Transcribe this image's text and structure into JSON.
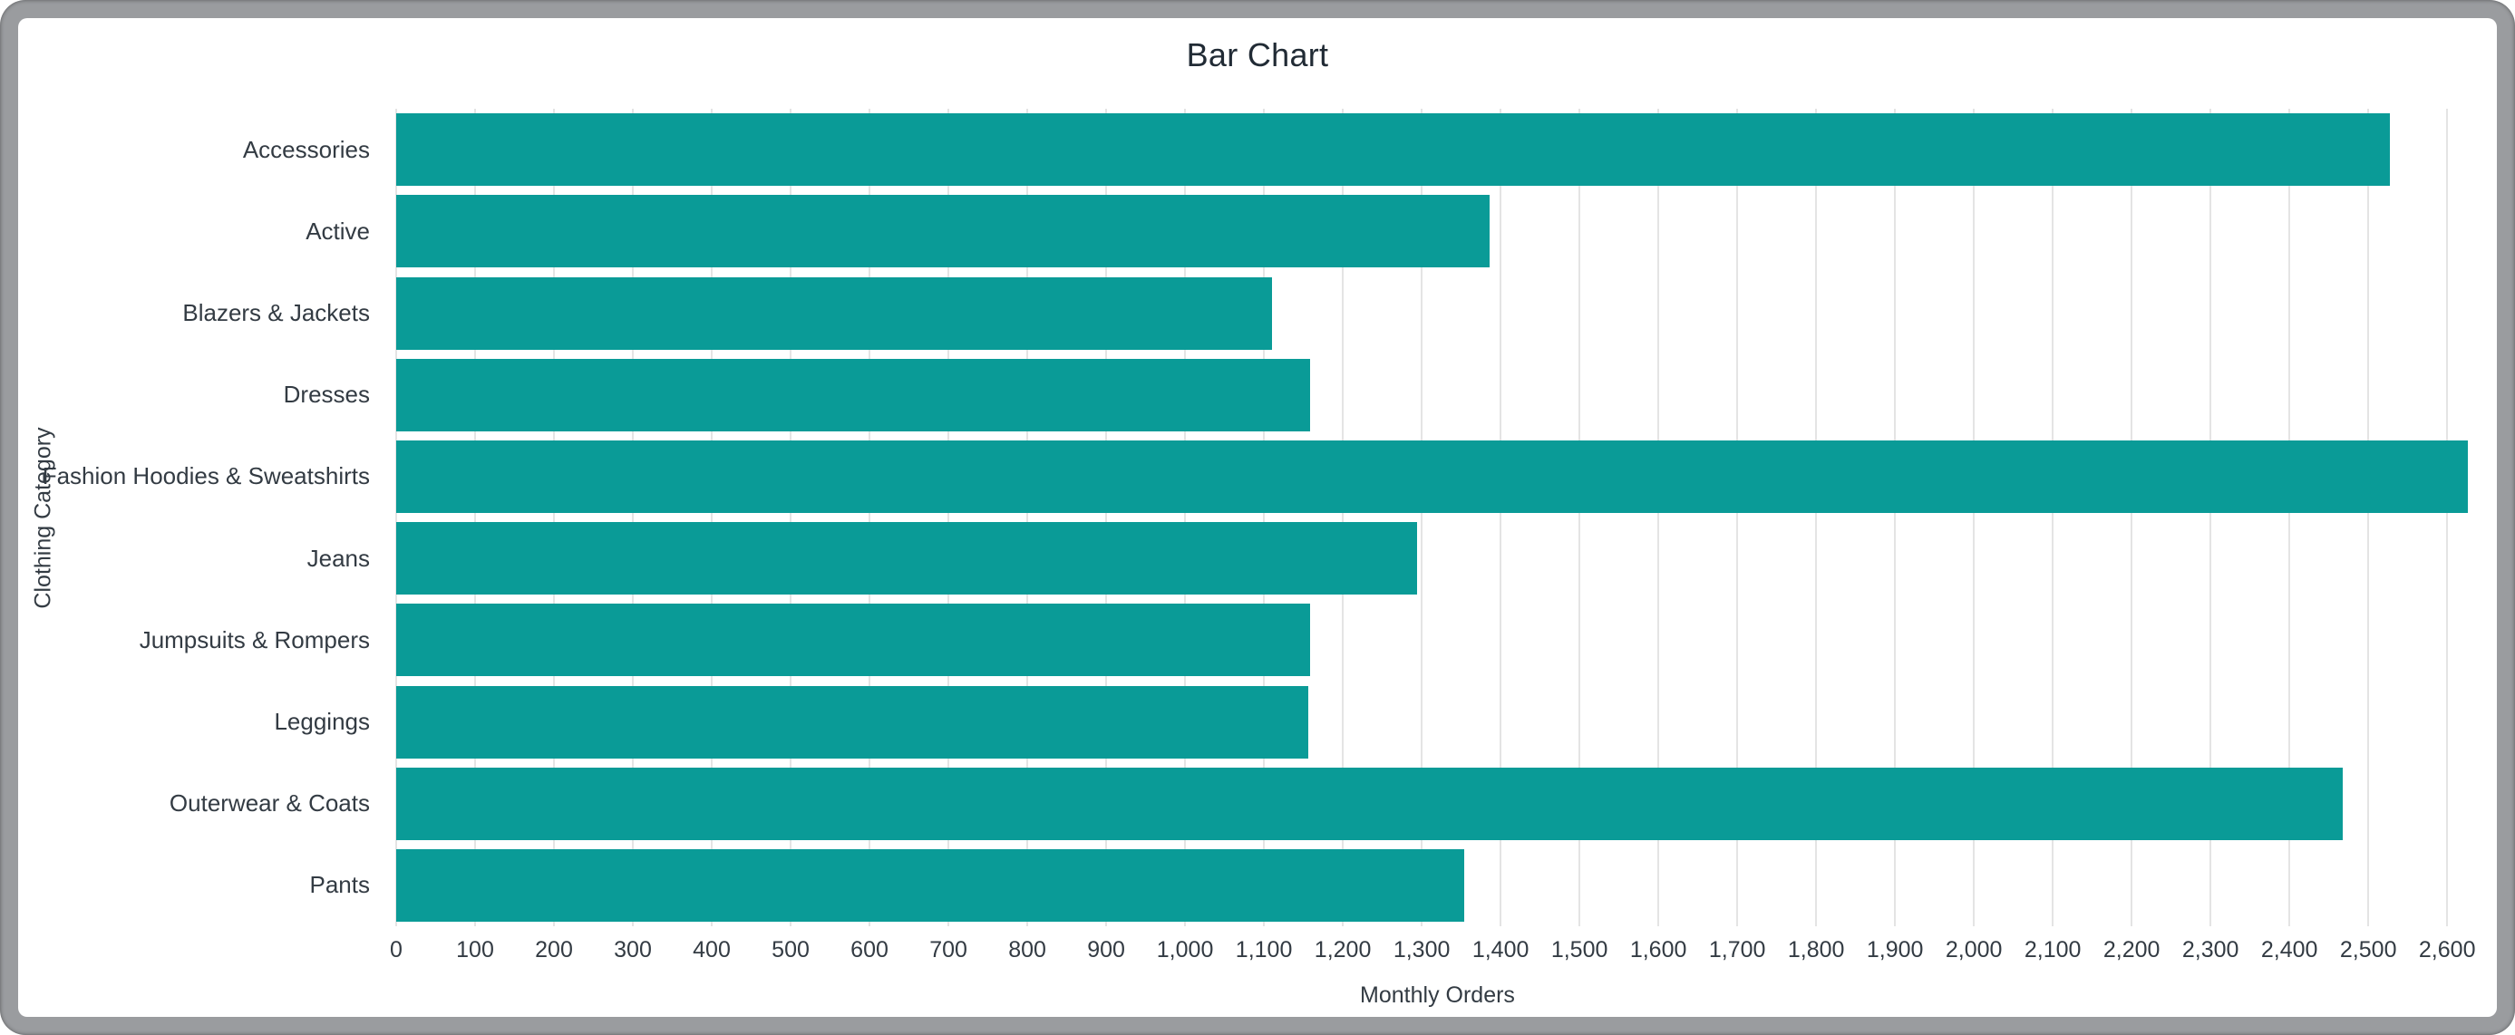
{
  "window": {
    "frame_color": "#9a9c9f",
    "card_color": "#ffffff"
  },
  "chart_data": {
    "type": "bar",
    "orientation": "horizontal",
    "title": "Bar Chart",
    "xlabel": "Monthly Orders",
    "ylabel": "Clothing Category",
    "categories": [
      "Accessories",
      "Active",
      "Blazers & Jackets",
      "Dresses",
      "Fashion Hoodies & Sweatshirts",
      "Jeans",
      "Jumpsuits & Rompers",
      "Leggings",
      "Outerwear & Coats",
      "Pants"
    ],
    "values": [
      2527,
      1386,
      1110,
      1159,
      2626,
      1294,
      1158,
      1156,
      2468,
      1354
    ],
    "xlim": [
      0,
      2640
    ],
    "xtick_interval": 100,
    "xtick_max": 2600,
    "grid": true,
    "legend": "none",
    "bar_color": "#0a9b97",
    "gridline_color": "#e4e4e4",
    "text_color": "#333b43",
    "title_color": "#212b35"
  }
}
